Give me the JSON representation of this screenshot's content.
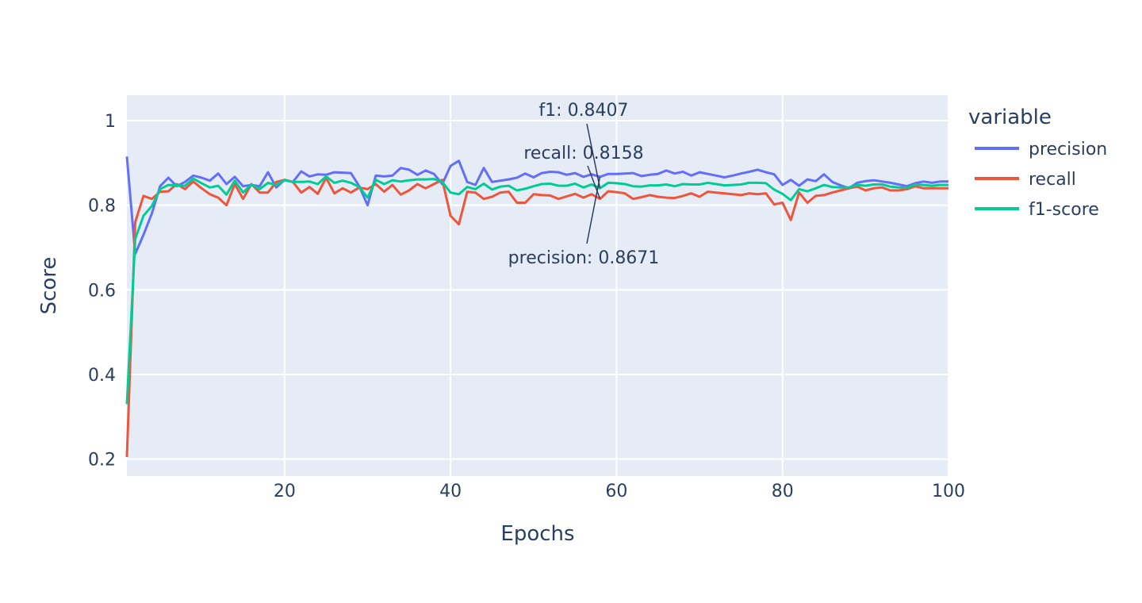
{
  "chart_data": {
    "type": "line",
    "xlabel": "Epochs",
    "ylabel": "Score",
    "xlim": [
      1,
      100
    ],
    "ylim": [
      0.16,
      1.06
    ],
    "xticks": [
      20,
      40,
      60,
      80,
      100
    ],
    "yticks": [
      0.2,
      0.4,
      0.6,
      0.8,
      1
    ],
    "grid": true,
    "legend": {
      "title": "variable",
      "placement": "right"
    },
    "series": [
      {
        "name": "precision",
        "color": "#636efa",
        "values": [
          0.915,
          0.685,
          0.73,
          0.78,
          0.845,
          0.865,
          0.845,
          0.855,
          0.87,
          0.865,
          0.858,
          0.875,
          0.85,
          0.867,
          0.845,
          0.848,
          0.845,
          0.878,
          0.842,
          0.86,
          0.855,
          0.88,
          0.868,
          0.873,
          0.872,
          0.878,
          0.877,
          0.876,
          0.845,
          0.8,
          0.87,
          0.868,
          0.87,
          0.888,
          0.884,
          0.872,
          0.882,
          0.874,
          0.85,
          0.893,
          0.905,
          0.855,
          0.848,
          0.888,
          0.855,
          0.858,
          0.861,
          0.865,
          0.875,
          0.866,
          0.876,
          0.879,
          0.878,
          0.872,
          0.876,
          0.867,
          0.873,
          0.867,
          0.874,
          0.874,
          0.875,
          0.876,
          0.869,
          0.872,
          0.874,
          0.882,
          0.875,
          0.879,
          0.87,
          0.878,
          0.874,
          0.87,
          0.866,
          0.87,
          0.875,
          0.879,
          0.884,
          0.878,
          0.873,
          0.848,
          0.86,
          0.846,
          0.861,
          0.857,
          0.873,
          0.855,
          0.847,
          0.84,
          0.853,
          0.857,
          0.859,
          0.856,
          0.853,
          0.849,
          0.845,
          0.852,
          0.856,
          0.853,
          0.856,
          0.856
        ]
      },
      {
        "name": "recall",
        "color": "#ef553b",
        "values": [
          0.205,
          0.76,
          0.822,
          0.815,
          0.832,
          0.833,
          0.85,
          0.838,
          0.856,
          0.84,
          0.826,
          0.818,
          0.8,
          0.85,
          0.815,
          0.85,
          0.83,
          0.83,
          0.855,
          0.86,
          0.855,
          0.83,
          0.843,
          0.827,
          0.865,
          0.828,
          0.84,
          0.83,
          0.842,
          0.838,
          0.85,
          0.832,
          0.848,
          0.825,
          0.835,
          0.85,
          0.84,
          0.85,
          0.86,
          0.775,
          0.755,
          0.832,
          0.83,
          0.815,
          0.82,
          0.83,
          0.832,
          0.806,
          0.806,
          0.826,
          0.824,
          0.823,
          0.815,
          0.821,
          0.827,
          0.818,
          0.826,
          0.815,
          0.833,
          0.831,
          0.828,
          0.815,
          0.819,
          0.824,
          0.82,
          0.818,
          0.817,
          0.822,
          0.828,
          0.82,
          0.832,
          0.83,
          0.828,
          0.826,
          0.824,
          0.828,
          0.826,
          0.828,
          0.802,
          0.806,
          0.765,
          0.83,
          0.806,
          0.822,
          0.824,
          0.83,
          0.835,
          0.84,
          0.844,
          0.835,
          0.84,
          0.842,
          0.835,
          0.835,
          0.838,
          0.845,
          0.84,
          0.84,
          0.84,
          0.84
        ]
      },
      {
        "name": "f1-score",
        "color": "#00cc96",
        "values": [
          0.33,
          0.72,
          0.775,
          0.798,
          0.838,
          0.848,
          0.847,
          0.846,
          0.863,
          0.852,
          0.842,
          0.846,
          0.825,
          0.858,
          0.83,
          0.849,
          0.838,
          0.853,
          0.848,
          0.859,
          0.855,
          0.855,
          0.856,
          0.85,
          0.868,
          0.853,
          0.858,
          0.853,
          0.843,
          0.818,
          0.86,
          0.85,
          0.859,
          0.856,
          0.859,
          0.861,
          0.861,
          0.862,
          0.855,
          0.83,
          0.826,
          0.843,
          0.838,
          0.851,
          0.837,
          0.844,
          0.846,
          0.835,
          0.839,
          0.845,
          0.85,
          0.851,
          0.846,
          0.846,
          0.851,
          0.842,
          0.849,
          0.84,
          0.853,
          0.852,
          0.85,
          0.845,
          0.844,
          0.847,
          0.847,
          0.849,
          0.845,
          0.85,
          0.849,
          0.849,
          0.853,
          0.85,
          0.847,
          0.848,
          0.849,
          0.853,
          0.853,
          0.852,
          0.837,
          0.827,
          0.812,
          0.838,
          0.833,
          0.84,
          0.848,
          0.843,
          0.842,
          0.842,
          0.848,
          0.846,
          0.849,
          0.849,
          0.844,
          0.842,
          0.841,
          0.849,
          0.848,
          0.846,
          0.848,
          0.848
        ]
      }
    ],
    "annotations": [
      {
        "text": "f1: 0.8407",
        "x": 58,
        "y": 0.8407
      },
      {
        "text": "recall: 0.8158",
        "x": 58,
        "y": 0.8158
      },
      {
        "text": "precision: 0.8671",
        "x": 58,
        "y": 0.8671
      }
    ]
  }
}
